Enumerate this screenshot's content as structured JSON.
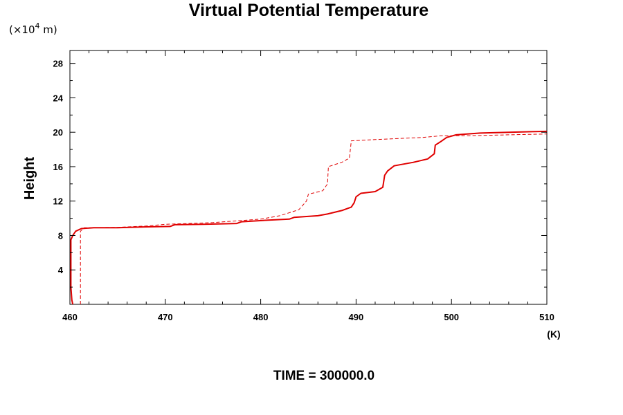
{
  "chart_data": {
    "type": "line",
    "title": "Virtual Potential Temperature",
    "y_unit_note": "(×10",
    "y_unit_exp": "4",
    "y_unit_tail": " m)",
    "ylabel": "Height",
    "xlabel": "(K)",
    "footer": "TIME = 300000.0",
    "xlim": [
      460,
      510
    ],
    "ylim": [
      0,
      29.5
    ],
    "x_ticks": [
      "460",
      "470",
      "480",
      "490",
      "500",
      "510"
    ],
    "y_ticks": [
      "4",
      "8",
      "12",
      "16",
      "20",
      "24",
      "28"
    ],
    "grid": false,
    "series": [
      {
        "style": "solid",
        "color": "#e00000",
        "points": [
          [
            460.3,
            0.0
          ],
          [
            460.2,
            0.5
          ],
          [
            460.1,
            2.0
          ],
          [
            460.1,
            6.0
          ],
          [
            460.1,
            7.5
          ],
          [
            460.3,
            8.0
          ],
          [
            460.6,
            8.5
          ],
          [
            461.2,
            8.8
          ],
          [
            462.5,
            8.9
          ],
          [
            465,
            8.9
          ],
          [
            468,
            9.0
          ],
          [
            470.5,
            9.05
          ],
          [
            471,
            9.25
          ],
          [
            474,
            9.3
          ],
          [
            477.5,
            9.4
          ],
          [
            478,
            9.6
          ],
          [
            481,
            9.8
          ],
          [
            483,
            9.9
          ],
          [
            483.5,
            10.1
          ],
          [
            486,
            10.3
          ],
          [
            487,
            10.5
          ],
          [
            488.5,
            10.9
          ],
          [
            489.5,
            11.3
          ],
          [
            489.8,
            11.8
          ],
          [
            490,
            12.5
          ],
          [
            490.5,
            12.9
          ],
          [
            492,
            13.1
          ],
          [
            492.8,
            13.6
          ],
          [
            493,
            15.0
          ],
          [
            493.3,
            15.5
          ],
          [
            494,
            16.1
          ],
          [
            496,
            16.5
          ],
          [
            497.5,
            16.9
          ],
          [
            498.2,
            17.5
          ],
          [
            498.3,
            18.5
          ],
          [
            499,
            19.0
          ],
          [
            499.5,
            19.4
          ],
          [
            500.5,
            19.7
          ],
          [
            503,
            19.9
          ],
          [
            506,
            20.0
          ],
          [
            510,
            20.1
          ]
        ]
      },
      {
        "style": "dashed",
        "color": "#e00000",
        "points": [
          [
            461.1,
            0.0
          ],
          [
            461.1,
            8.5
          ],
          [
            461.5,
            8.9
          ],
          [
            465,
            8.95
          ],
          [
            468,
            9.1
          ],
          [
            470,
            9.3
          ],
          [
            475,
            9.5
          ],
          [
            480,
            9.9
          ],
          [
            482,
            10.3
          ],
          [
            484,
            11.0
          ],
          [
            484.8,
            12.0
          ],
          [
            485,
            12.8
          ],
          [
            486.5,
            13.2
          ],
          [
            487,
            14.0
          ],
          [
            487.1,
            16.0
          ],
          [
            488.5,
            16.5
          ],
          [
            489.3,
            17.0
          ],
          [
            489.5,
            19.0
          ],
          [
            492,
            19.15
          ],
          [
            497,
            19.4
          ],
          [
            499,
            19.6
          ],
          [
            502,
            19.6
          ],
          [
            506,
            19.7
          ],
          [
            510,
            19.8
          ]
        ]
      }
    ]
  }
}
